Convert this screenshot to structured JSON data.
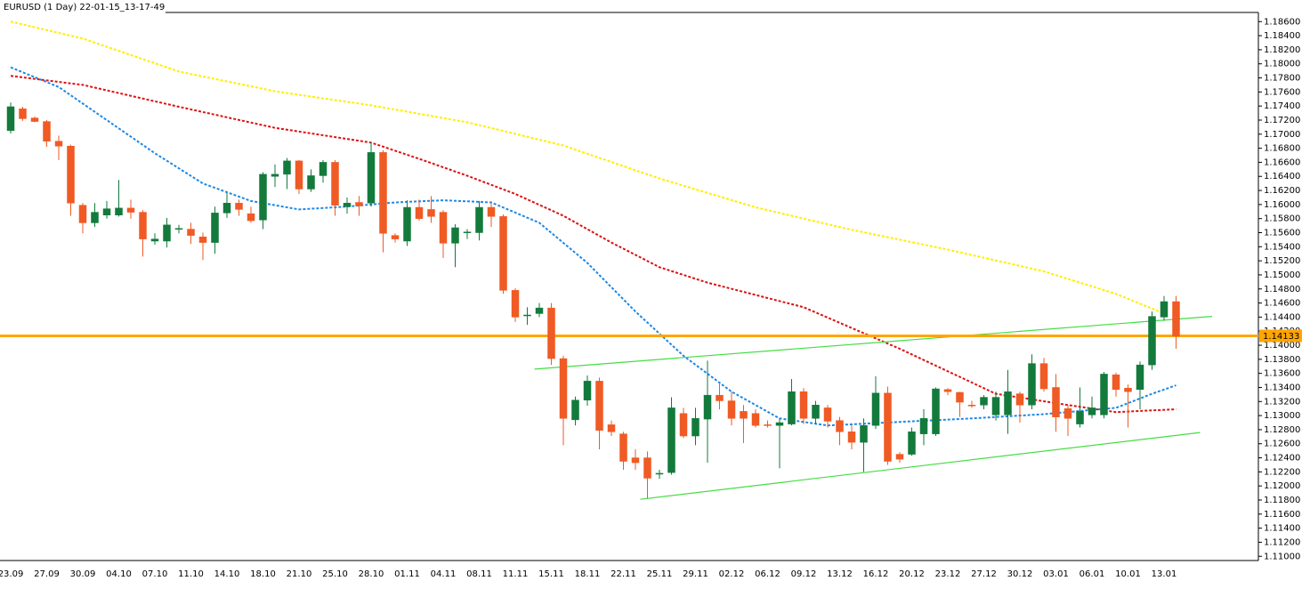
{
  "chart_data": {
    "type": "candlestick",
    "title": "EURUSD (1 Day) 22-01-15_13-17-49",
    "categories": [
      "23.09",
      null,
      null,
      "27.09",
      null,
      null,
      "30.09",
      null,
      null,
      "04.10",
      null,
      null,
      "07.10",
      null,
      null,
      "11.10",
      null,
      null,
      "14.10",
      null,
      null,
      "18.10",
      null,
      null,
      "21.10",
      null,
      null,
      "25.10",
      null,
      null,
      "28.10",
      null,
      null,
      "01.11",
      null,
      null,
      "04.11",
      null,
      null,
      "08.11",
      null,
      null,
      "11.11",
      null,
      null,
      "15.11",
      null,
      null,
      "18.11",
      null,
      null,
      "22.11",
      null,
      null,
      "25.11",
      null,
      null,
      "29.11",
      null,
      null,
      "02.12",
      null,
      null,
      "06.12",
      null,
      null,
      "09.12",
      null,
      null,
      "13.12",
      null,
      null,
      "16.12",
      null,
      null,
      "20.12",
      null,
      null,
      "23.12",
      null,
      null,
      "27.12",
      null,
      null,
      "30.12",
      null,
      null,
      "03.01",
      null,
      null,
      "06.01",
      null,
      null,
      "10.01",
      null,
      null,
      "13.01",
      null
    ],
    "open": [
      1.1705,
      1.1736,
      1.1723,
      1.1718,
      1.169,
      1.1683,
      1.1599,
      1.1574,
      1.1585,
      1.1585,
      1.1595,
      1.1589,
      1.1548,
      1.1548,
      1.1565,
      1.1565,
      1.1554,
      1.1546,
      1.1588,
      1.1602,
      1.1587,
      1.1578,
      1.164,
      1.1643,
      1.1662,
      1.1622,
      1.1641,
      1.166,
      1.1597,
      1.1603,
      1.1602,
      1.1674,
      1.1556,
      1.1548,
      1.1596,
      1.1593,
      1.1589,
      1.1545,
      1.156,
      1.156,
      1.1596,
      1.1583,
      1.1478,
      1.1442,
      1.1445,
      1.1453,
      1.1381,
      1.1294,
      1.1322,
      1.1349,
      1.1287,
      1.1274,
      1.124,
      1.124,
      1.1217,
      1.1219,
      1.1303,
      1.1271,
      1.1295,
      1.1329,
      1.1321,
      1.1306,
      1.1303,
      1.1287,
      1.1286,
      1.1288,
      1.1334,
      1.1296,
      1.1311,
      1.1293,
      1.1277,
      1.1262,
      1.1286,
      1.1332,
      1.1245,
      1.1245,
      1.1274,
      1.1274,
      1.1337,
      1.1333,
      1.1315,
      1.1315,
      1.1301,
      1.1301,
      1.1331,
      1.1315,
      1.1374,
      1.134,
      1.131,
      1.1288,
      1.1301,
      1.1301,
      1.1358,
      1.1339,
      1.1337,
      1.1372,
      1.144,
      1.1462
    ],
    "high": [
      1.1745,
      1.1739,
      1.1725,
      1.172,
      1.1698,
      1.1685,
      1.1602,
      1.1602,
      1.1605,
      1.1635,
      1.1607,
      1.1592,
      1.1559,
      1.1581,
      1.1571,
      1.1574,
      1.156,
      1.1597,
      1.1617,
      1.1607,
      1.1597,
      1.1646,
      1.1657,
      1.1666,
      1.1663,
      1.165,
      1.1663,
      1.1663,
      1.161,
      1.1612,
      1.1688,
      1.1677,
      1.1559,
      1.1606,
      1.1607,
      1.1612,
      1.1592,
      1.1572,
      1.1565,
      1.1605,
      1.1603,
      1.1586,
      1.1481,
      1.1454,
      1.146,
      1.146,
      1.1385,
      1.1327,
      1.1357,
      1.1354,
      1.1293,
      1.1277,
      1.1252,
      1.1249,
      1.1223,
      1.1326,
      1.1311,
      1.1311,
      1.1378,
      1.1347,
      1.1334,
      1.1315,
      1.1309,
      1.1293,
      1.1296,
      1.1352,
      1.1339,
      1.1321,
      1.1315,
      1.1298,
      1.1286,
      1.1296,
      1.1356,
      1.1341,
      1.1248,
      1.1283,
      1.1309,
      1.134,
      1.1339,
      1.1334,
      1.1321,
      1.1329,
      1.1334,
      1.1365,
      1.1334,
      1.1387,
      1.1382,
      1.1359,
      1.1315,
      1.134,
      1.1327,
      1.1362,
      1.1361,
      1.1344,
      1.1377,
      1.1448,
      1.147,
      1.147
    ],
    "low": [
      1.1701,
      1.1719,
      1.1717,
      1.1682,
      1.1663,
      1.1584,
      1.1559,
      1.1568,
      1.158,
      1.1583,
      1.158,
      1.1526,
      1.1543,
      1.1539,
      1.1559,
      1.1544,
      1.1521,
      1.153,
      1.1581,
      1.1584,
      1.1574,
      1.1565,
      1.1625,
      1.1622,
      1.1615,
      1.1618,
      1.1631,
      1.1584,
      1.1587,
      1.1584,
      1.1597,
      1.1532,
      1.1546,
      1.1541,
      1.1577,
      1.1574,
      1.1524,
      1.1511,
      1.1551,
      1.1549,
      1.1568,
      1.1473,
      1.1433,
      1.1429,
      1.144,
      1.1372,
      1.1258,
      1.1286,
      1.1314,
      1.1252,
      1.1271,
      1.1223,
      1.1223,
      1.1182,
      1.121,
      1.1216,
      1.1268,
      1.1258,
      1.1233,
      1.1309,
      1.1286,
      1.1261,
      1.1283,
      1.1283,
      1.1225,
      1.1286,
      1.1288,
      1.1288,
      1.1283,
      1.1258,
      1.1252,
      1.122,
      1.1281,
      1.123,
      1.1233,
      1.1243,
      1.1258,
      1.1271,
      1.1329,
      1.1298,
      1.1311,
      1.1309,
      1.1293,
      1.1274,
      1.129,
      1.1309,
      1.1334,
      1.1277,
      1.1271,
      1.1283,
      1.1296,
      1.1296,
      1.1327,
      1.1283,
      1.1309,
      1.1365,
      1.1435,
      1.1395
    ],
    "close": [
      1.1739,
      1.1722,
      1.1718,
      1.169,
      1.1683,
      1.1602,
      1.1574,
      1.1589,
      1.1594,
      1.1595,
      1.1589,
      1.1551,
      1.1551,
      1.1571,
      1.1566,
      1.1556,
      1.1546,
      1.1588,
      1.1602,
      1.1593,
      1.1577,
      1.1643,
      1.1643,
      1.1662,
      1.1622,
      1.1641,
      1.166,
      1.1599,
      1.1602,
      1.1598,
      1.1674,
      1.1559,
      1.1551,
      1.1596,
      1.158,
      1.1583,
      1.1545,
      1.1567,
      1.1561,
      1.1596,
      1.1583,
      1.1478,
      1.144,
      1.1443,
      1.1453,
      1.1381,
      1.1296,
      1.1322,
      1.1349,
      1.1279,
      1.1277,
      1.1235,
      1.1233,
      1.1211,
      1.1218,
      1.1311,
      1.1271,
      1.1296,
      1.1329,
      1.1321,
      1.1296,
      1.1296,
      1.1286,
      1.1286,
      1.129,
      1.1334,
      1.1296,
      1.1315,
      1.1292,
      1.1277,
      1.1262,
      1.1286,
      1.1332,
      1.1235,
      1.1238,
      1.1277,
      1.1296,
      1.1338,
      1.1334,
      1.1319,
      1.1314,
      1.1326,
      1.1326,
      1.1334,
      1.1315,
      1.1374,
      1.1338,
      1.1298,
      1.1296,
      1.1306,
      1.1311,
      1.1359,
      1.1337,
      1.1334,
      1.1372,
      1.1441,
      1.1462,
      1.1413
    ],
    "up_color": "#137a3c",
    "down_color": "#f05a24",
    "ylim": [
      1.1094,
      1.1873
    ],
    "yticks": [
      {
        "value": 1.11,
        "label": "1.11000"
      },
      {
        "value": 1.112,
        "label": "1.11200"
      },
      {
        "value": 1.114,
        "label": "1.11400"
      },
      {
        "value": 1.116,
        "label": "1.11600"
      },
      {
        "value": 1.118,
        "label": "1.11800"
      },
      {
        "value": 1.12,
        "label": "1.12000"
      },
      {
        "value": 1.122,
        "label": "1.12200"
      },
      {
        "value": 1.124,
        "label": "1.12400"
      },
      {
        "value": 1.126,
        "label": "1.12600"
      },
      {
        "value": 1.128,
        "label": "1.12800"
      },
      {
        "value": 1.13,
        "label": "1.13000"
      },
      {
        "value": 1.132,
        "label": "1.13200"
      },
      {
        "value": 1.134,
        "label": "1.13400"
      },
      {
        "value": 1.136,
        "label": "1.13600"
      },
      {
        "value": 1.138,
        "label": "1.13800"
      },
      {
        "value": 1.14,
        "label": "1.14000"
      },
      {
        "value": 1.142,
        "label": "1.14200"
      },
      {
        "value": 1.144,
        "label": "1.14400"
      },
      {
        "value": 1.146,
        "label": "1.14600"
      },
      {
        "value": 1.148,
        "label": "1.14800"
      },
      {
        "value": 1.15,
        "label": "1.15000"
      },
      {
        "value": 1.152,
        "label": "1.15200"
      },
      {
        "value": 1.154,
        "label": "1.15400"
      },
      {
        "value": 1.156,
        "label": "1.15600"
      },
      {
        "value": 1.158,
        "label": "1.15800"
      },
      {
        "value": 1.16,
        "label": "1.16000"
      },
      {
        "value": 1.162,
        "label": "1.16200"
      },
      {
        "value": 1.164,
        "label": "1.16400"
      },
      {
        "value": 1.166,
        "label": "1.16600"
      },
      {
        "value": 1.168,
        "label": "1.16800"
      },
      {
        "value": 1.17,
        "label": "1.17000"
      },
      {
        "value": 1.172,
        "label": "1.17200"
      },
      {
        "value": 1.174,
        "label": "1.17400"
      },
      {
        "value": 1.176,
        "label": "1.17600"
      },
      {
        "value": 1.178,
        "label": "1.17800"
      },
      {
        "value": 1.18,
        "label": "1.18000"
      },
      {
        "value": 1.182,
        "label": "1.18200"
      },
      {
        "value": 1.184,
        "label": "1.18400"
      },
      {
        "value": 1.186,
        "label": "1.18600"
      }
    ],
    "overlays": [
      {
        "color": "#ffee00",
        "x": [
          0,
          6,
          14,
          22,
          30,
          38,
          46,
          54,
          62,
          70,
          78,
          86,
          92,
          96
        ],
        "values": [
          1.186,
          1.1836,
          1.1789,
          1.1761,
          1.1741,
          1.1717,
          1.1684,
          1.1637,
          1.1596,
          1.1564,
          1.1536,
          1.1505,
          1.1473,
          1.1445
        ]
      },
      {
        "color": "#dd1111",
        "x": [
          0,
          6,
          14,
          22,
          30,
          34,
          38,
          42,
          46,
          50,
          54,
          58,
          66,
          74,
          82,
          88,
          92,
          97
        ],
        "values": [
          1.1783,
          1.177,
          1.1739,
          1.1709,
          1.1688,
          1.1665,
          1.1641,
          1.1615,
          1.1584,
          1.1546,
          1.1511,
          1.1489,
          1.1454,
          1.1395,
          1.1331,
          1.1315,
          1.1305,
          1.1309
        ]
      },
      {
        "color": "#1e88e5",
        "x": [
          0,
          4,
          8,
          12,
          16,
          20,
          24,
          28,
          32,
          36,
          40,
          44,
          48,
          52,
          56,
          60,
          64,
          68,
          74,
          80,
          86,
          92,
          95,
          97
        ],
        "values": [
          1.1795,
          1.1767,
          1.172,
          1.1673,
          1.163,
          1.1605,
          1.1593,
          1.1597,
          1.1603,
          1.1606,
          1.1603,
          1.1574,
          1.1517,
          1.1448,
          1.1385,
          1.1334,
          1.1296,
          1.1286,
          1.1291,
          1.1296,
          1.1302,
          1.1311,
          1.1331,
          1.1343
        ]
      }
    ],
    "trendlines": [
      {
        "color": "#44dd44",
        "x": [
          43.6,
          100
        ],
        "values": [
          1.1366,
          1.1441
        ]
      },
      {
        "color": "#44dd44",
        "x": [
          52.4,
          99
        ],
        "values": [
          1.1181,
          1.1276
        ]
      }
    ],
    "price_line": {
      "value": 1.14133,
      "color": "#ffa500"
    }
  }
}
